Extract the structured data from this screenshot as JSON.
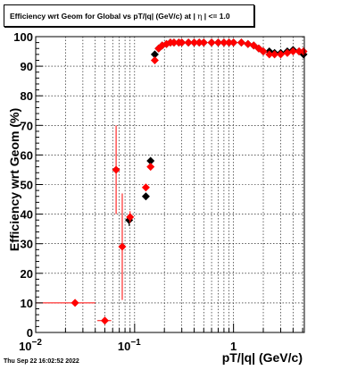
{
  "title_parts": {
    "prefix": "Efficiency wrt Geom for Global vs pT/|q| (GeV/c) at |",
    "eta": "η",
    "suffix": "| <= 1.0"
  },
  "timestamp": "Thu Sep 22 16:02:52 2022",
  "chart_data": {
    "type": "scatter",
    "title": "Efficiency wrt Geom for Global vs pT/|q| (GeV/c) at | η | <= 1.0",
    "xlabel": "pT/|q| (GeV/c)",
    "ylabel": "Efficiency wrt Geom (%)",
    "xscale": "log",
    "xlim": [
      0.01,
      5.2
    ],
    "ylim": [
      0,
      100
    ],
    "grid": true,
    "x_ticks": [
      {
        "value": 0.01,
        "base": "10",
        "exp": "−2"
      },
      {
        "value": 0.1,
        "base": "10",
        "exp": "−1"
      },
      {
        "value": 1,
        "base": "1",
        "exp": ""
      }
    ],
    "y_ticks": [
      0,
      10,
      20,
      30,
      40,
      50,
      60,
      70,
      80,
      90,
      100
    ],
    "colors": {
      "black_series": "#000000",
      "red_series": "#ff0000"
    },
    "series": [
      {
        "color": "#000000",
        "marker": "diamond",
        "points": [
          {
            "x": 0.088,
            "y": 38,
            "xerr": 0.006,
            "yerr": 2
          },
          {
            "x": 0.13,
            "y": 46,
            "xerr": 0.006,
            "yerr": 1
          },
          {
            "x": 0.145,
            "y": 58,
            "xerr": 0.006,
            "yerr": 1
          },
          {
            "x": 0.16,
            "y": 94,
            "xerr": 0.008,
            "yerr": 1
          },
          {
            "x": 0.175,
            "y": 96
          },
          {
            "x": 0.19,
            "y": 97
          },
          {
            "x": 0.21,
            "y": 97.5
          },
          {
            "x": 0.23,
            "y": 98
          },
          {
            "x": 0.25,
            "y": 98
          },
          {
            "x": 0.28,
            "y": 98
          },
          {
            "x": 0.3,
            "y": 98
          },
          {
            "x": 0.35,
            "y": 98
          },
          {
            "x": 0.4,
            "y": 98
          },
          {
            "x": 0.45,
            "y": 98
          },
          {
            "x": 0.5,
            "y": 98
          },
          {
            "x": 0.6,
            "y": 98
          },
          {
            "x": 0.7,
            "y": 98
          },
          {
            "x": 0.8,
            "y": 98
          },
          {
            "x": 0.9,
            "y": 98
          },
          {
            "x": 1.0,
            "y": 98
          },
          {
            "x": 1.2,
            "y": 98
          },
          {
            "x": 1.4,
            "y": 97.5
          },
          {
            "x": 1.6,
            "y": 97
          },
          {
            "x": 1.8,
            "y": 96
          },
          {
            "x": 2.0,
            "y": 95
          },
          {
            "x": 2.3,
            "y": 95
          },
          {
            "x": 2.6,
            "y": 94.5
          },
          {
            "x": 3.0,
            "y": 94.5
          },
          {
            "x": 3.5,
            "y": 95
          },
          {
            "x": 4.0,
            "y": 95.5
          },
          {
            "x": 4.6,
            "y": 95
          },
          {
            "x": 5.1,
            "y": 94
          }
        ]
      },
      {
        "color": "#ff0000",
        "marker": "diamond",
        "points": [
          {
            "x": 0.025,
            "y": 10,
            "xerr": 0.015,
            "yerr": 0.5
          },
          {
            "x": 0.05,
            "y": 4,
            "xerr": 0.008,
            "yerr": 1
          },
          {
            "x": 0.065,
            "y": 55,
            "xerr": 0.003,
            "yerr": 15
          },
          {
            "x": 0.075,
            "y": 29,
            "xerr": 0.003,
            "yerr": 18
          },
          {
            "x": 0.09,
            "y": 39,
            "xerr": 0.006,
            "yerr": 2
          },
          {
            "x": 0.13,
            "y": 49,
            "xerr": 0.006,
            "yerr": 1
          },
          {
            "x": 0.145,
            "y": 56,
            "xerr": 0.006,
            "yerr": 1
          },
          {
            "x": 0.16,
            "y": 92,
            "xerr": 0.008,
            "yerr": 1
          },
          {
            "x": 0.175,
            "y": 96
          },
          {
            "x": 0.19,
            "y": 97
          },
          {
            "x": 0.21,
            "y": 97.5
          },
          {
            "x": 0.23,
            "y": 98
          },
          {
            "x": 0.25,
            "y": 98
          },
          {
            "x": 0.28,
            "y": 98
          },
          {
            "x": 0.3,
            "y": 98
          },
          {
            "x": 0.35,
            "y": 98
          },
          {
            "x": 0.4,
            "y": 98
          },
          {
            "x": 0.45,
            "y": 98
          },
          {
            "x": 0.5,
            "y": 98
          },
          {
            "x": 0.6,
            "y": 98
          },
          {
            "x": 0.7,
            "y": 98
          },
          {
            "x": 0.8,
            "y": 98
          },
          {
            "x": 0.9,
            "y": 98
          },
          {
            "x": 1.0,
            "y": 98
          },
          {
            "x": 1.2,
            "y": 98
          },
          {
            "x": 1.4,
            "y": 97.5
          },
          {
            "x": 1.6,
            "y": 97
          },
          {
            "x": 1.8,
            "y": 96
          },
          {
            "x": 2.0,
            "y": 95
          },
          {
            "x": 2.3,
            "y": 94
          },
          {
            "x": 2.6,
            "y": 94
          },
          {
            "x": 3.0,
            "y": 94
          },
          {
            "x": 3.5,
            "y": 94.5
          },
          {
            "x": 4.0,
            "y": 95
          },
          {
            "x": 4.6,
            "y": 95
          },
          {
            "x": 5.1,
            "y": 95
          }
        ]
      }
    ]
  }
}
